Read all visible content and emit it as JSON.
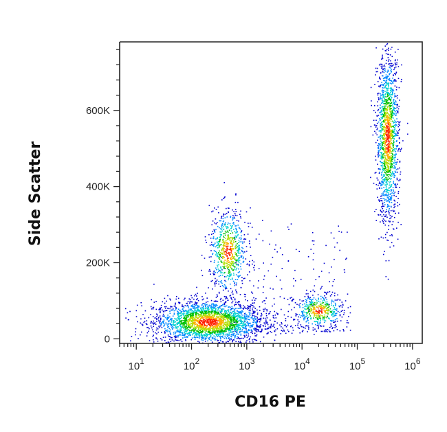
{
  "chart_data": {
    "type": "scatter",
    "xlabel": "CD16 PE",
    "ylabel": "Side Scatter",
    "x_scale": "log",
    "xlim": [
      5,
      1500000
    ],
    "ylim": [
      -12000,
      780000
    ],
    "x_ticks": [
      {
        "value": 10,
        "base": "10",
        "exp": "1"
      },
      {
        "value": 100,
        "base": "10",
        "exp": "2"
      },
      {
        "value": 1000,
        "base": "10",
        "exp": "3"
      },
      {
        "value": 10000,
        "base": "10",
        "exp": "4"
      },
      {
        "value": 100000,
        "base": "10",
        "exp": "5"
      },
      {
        "value": 1000000,
        "base": "10",
        "exp": "6"
      }
    ],
    "y_ticks": [
      {
        "value": 0,
        "label": "0"
      },
      {
        "value": 200000,
        "label": "200K"
      },
      {
        "value": 400000,
        "label": "400K"
      },
      {
        "value": 600000,
        "label": "600K"
      }
    ],
    "grid": false,
    "legend": "none",
    "density_colormap": [
      "#0000d0",
      "#0088ff",
      "#00d0d0",
      "#00c000",
      "#b0e000",
      "#ffb000",
      "#ff2000"
    ],
    "populations": [
      {
        "center_x": 200,
        "center_y": 45000,
        "spread_log_x": 0.5,
        "spread_y": 28000
      },
      {
        "center_x": 450,
        "center_y": 230000,
        "spread_log_x": 0.17,
        "spread_y": 55000
      },
      {
        "center_x": 20000,
        "center_y": 75000,
        "spread_log_x": 0.22,
        "spread_y": 22000
      },
      {
        "center_x": 350000,
        "center_y": 530000,
        "spread_log_x": 0.1,
        "spread_y": 110000
      }
    ]
  }
}
